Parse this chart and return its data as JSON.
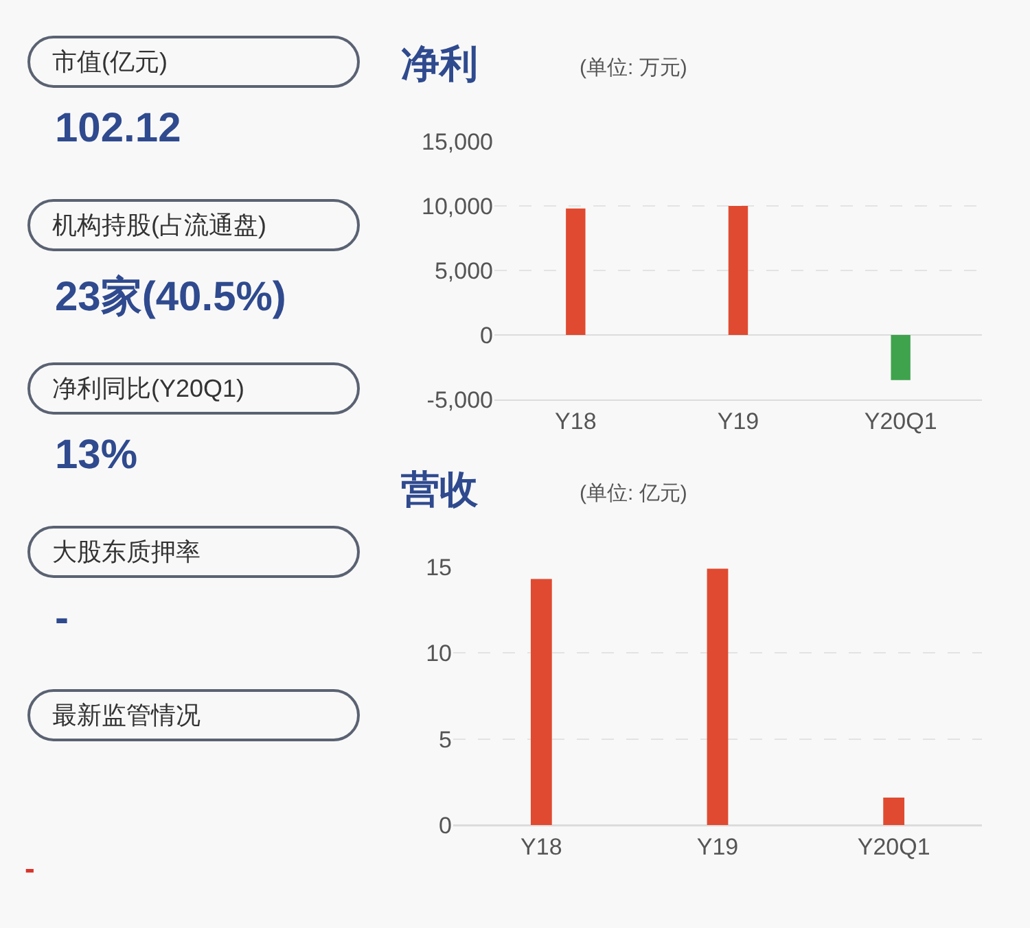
{
  "chart_data": [
    {
      "type": "other",
      "annotations": [
        "市值(亿元)",
        "102.12",
        "机构持股(占流通盘)",
        "23家(40.5%)",
        "净利同比(Y20Q1)",
        "13%",
        "大股东质押率",
        "-",
        "最新监管情况",
        "-"
      ]
    },
    {
      "type": "bar",
      "title": "净利",
      "subtitle": "(单位: 万元)",
      "categories": [
        "Y18",
        "Y19",
        "Y20Q1"
      ],
      "values": [
        9800,
        10000,
        -3500
      ],
      "colors": [
        "#e04a30",
        "#e04a30",
        "#3fa34d"
      ],
      "ylim": [
        -5000,
        15000
      ],
      "yticks": [
        {
          "value": -5000,
          "label": "-5,000"
        },
        0,
        {
          "value": 5000,
          "label": "5,000"
        },
        {
          "value": 10000,
          "label": "10,000"
        },
        {
          "value": 15000,
          "label": "15,000"
        }
      ],
      "grid": "y"
    },
    {
      "type": "bar",
      "title": "营收",
      "subtitle": "(单位: 亿元)",
      "categories": [
        "Y18",
        "Y19",
        "Y20Q1"
      ],
      "values": [
        14.3,
        14.9,
        1.6
      ],
      "colors": [
        "#e04a30",
        "#e04a30",
        "#e04a30"
      ],
      "ylim": [
        0,
        15
      ],
      "yticks": [
        0,
        5,
        10,
        15
      ],
      "grid": "y"
    }
  ]
}
